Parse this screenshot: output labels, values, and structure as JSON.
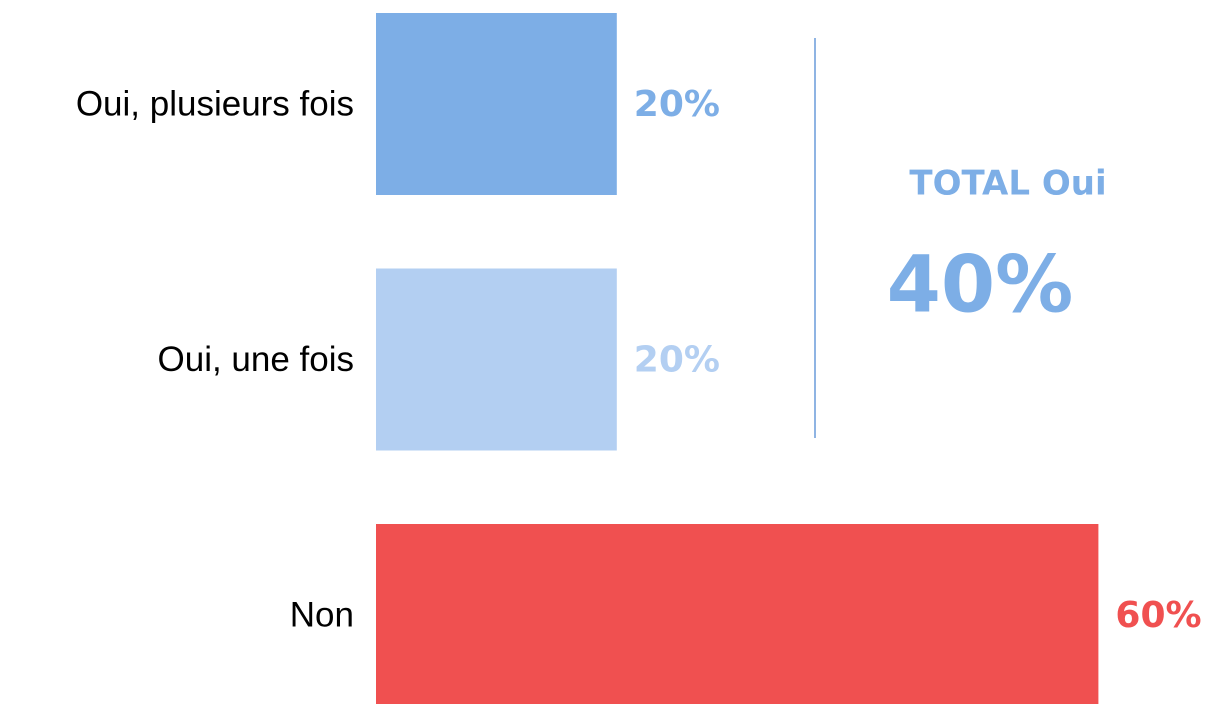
{
  "chart_data": {
    "type": "hbar",
    "categories": [
      "Oui, plusieurs fois",
      "Oui, une fois",
      "Non"
    ],
    "values": [
      20,
      20,
      60
    ],
    "value_labels": [
      "20%",
      "20%",
      "60%"
    ],
    "colors": [
      "#7daee6",
      "#b3cff2",
      "#f05050"
    ],
    "annotation": {
      "title": "TOTAL Oui",
      "value": 40,
      "value_label": "40%",
      "color": "#7daee6"
    }
  }
}
